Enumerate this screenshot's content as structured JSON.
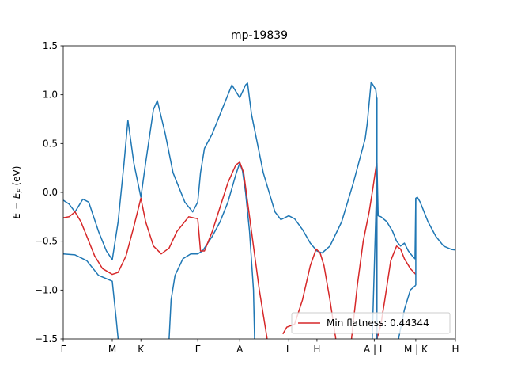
{
  "chart_data": {
    "type": "line",
    "title": "mp-19839",
    "xlabel": "",
    "ylabel": "E − E_F (eV)",
    "ylim": [
      -1.5,
      1.5
    ],
    "xlim": [
      0,
      100
    ],
    "y_ticks": [
      -1.5,
      -1.0,
      -0.5,
      0.0,
      0.5,
      1.0,
      1.5
    ],
    "y_tick_labels": [
      "−1.5",
      "−1.0",
      "−0.5",
      "0.0",
      "0.5",
      "1.0",
      "1.5"
    ],
    "high_symmetry_points": [
      {
        "label": "Γ",
        "x": 0
      },
      {
        "label": "M",
        "x": 12.5
      },
      {
        "label": "K",
        "x": 19.8
      },
      {
        "label": "Γ",
        "x": 34.3
      },
      {
        "label": "A",
        "x": 45.0
      },
      {
        "label": "L",
        "x": 57.5
      },
      {
        "label": "H",
        "x": 64.7
      },
      {
        "label": "A | L",
        "x": 79.3
      },
      {
        "label": "M | K",
        "x": 89.9
      },
      {
        "label": "H",
        "x": 100
      }
    ],
    "grid": false,
    "legend": {
      "entries": [
        "Min flatness: 0.44344"
      ],
      "placement": "lower right"
    },
    "colors": {
      "bands": "#1f77b4",
      "flat_band": "#d62728"
    },
    "series": [
      {
        "color": "#1f77b4",
        "points": [
          [
            0,
            -0.63
          ],
          [
            3,
            -0.64
          ],
          [
            6,
            -0.7
          ],
          [
            9,
            -0.85
          ],
          [
            12.5,
            -0.91
          ],
          [
            13.5,
            -1.3
          ],
          [
            14,
            -1.5
          ]
        ]
      },
      {
        "color": "#1f77b4",
        "points": [
          [
            0,
            -0.08
          ],
          [
            1.5,
            -0.12
          ],
          [
            3,
            -0.2
          ],
          [
            5,
            -0.07
          ],
          [
            6.5,
            -0.1
          ],
          [
            9,
            -0.4
          ],
          [
            11,
            -0.6
          ],
          [
            12.5,
            -0.69
          ],
          [
            14,
            -0.3
          ],
          [
            15.5,
            0.3
          ],
          [
            16.5,
            0.74
          ],
          [
            18,
            0.3
          ],
          [
            19.8,
            -0.05
          ],
          [
            21,
            0.3
          ],
          [
            23,
            0.85
          ],
          [
            24,
            0.94
          ],
          [
            26,
            0.6
          ],
          [
            28,
            0.2
          ],
          [
            31,
            -0.1
          ],
          [
            33,
            -0.2
          ],
          [
            34.3,
            -0.1
          ],
          [
            35,
            0.2
          ],
          [
            36,
            0.45
          ],
          [
            38,
            0.6
          ],
          [
            40,
            0.8
          ],
          [
            43,
            1.1
          ],
          [
            45,
            0.97
          ],
          [
            46.5,
            1.1
          ],
          [
            47,
            1.12
          ],
          [
            48,
            0.8
          ],
          [
            51,
            0.2
          ],
          [
            54,
            -0.2
          ],
          [
            55.5,
            -0.28
          ],
          [
            57.5,
            -0.24
          ],
          [
            59,
            -0.27
          ],
          [
            61,
            -0.38
          ],
          [
            63,
            -0.52
          ],
          [
            64.7,
            -0.6
          ],
          [
            66,
            -0.62
          ],
          [
            68,
            -0.55
          ],
          [
            71,
            -0.3
          ],
          [
            74,
            0.1
          ],
          [
            77,
            0.55
          ],
          [
            77.5,
            0.7
          ],
          [
            78.5,
            1.13
          ],
          [
            79,
            1.1
          ],
          [
            79.7,
            1.05
          ],
          [
            79.9,
            0.97
          ],
          [
            80,
            -1.5
          ]
        ]
      },
      {
        "color": "#1f77b4",
        "points": [
          [
            27,
            -1.5
          ],
          [
            27.5,
            -1.1
          ],
          [
            28.5,
            -0.85
          ],
          [
            30.5,
            -0.68
          ],
          [
            32.5,
            -0.63
          ],
          [
            34.3,
            -0.63
          ],
          [
            35.5,
            -0.6
          ],
          [
            38,
            -0.45
          ],
          [
            40,
            -0.3
          ],
          [
            42,
            -0.1
          ],
          [
            44,
            0.18
          ],
          [
            45,
            0.3
          ],
          [
            45.7,
            0.22
          ],
          [
            46.5,
            0
          ],
          [
            47.5,
            -0.4
          ],
          [
            48.5,
            -1.0
          ],
          [
            48.8,
            -1.5
          ]
        ]
      },
      {
        "color": "#1f77b4",
        "points": [
          [
            78.8,
            -1.5
          ],
          [
            79.3,
            -0.8
          ],
          [
            79.8,
            -0.1
          ],
          [
            80,
            0.3
          ],
          [
            80.3,
            -0.24
          ],
          [
            81,
            -0.25
          ],
          [
            82.5,
            -0.3
          ],
          [
            84,
            -0.4
          ],
          [
            85,
            -0.5
          ],
          [
            86,
            -0.55
          ],
          [
            87,
            -0.52
          ],
          [
            88,
            -0.6
          ],
          [
            89,
            -0.65
          ],
          [
            89.7,
            -0.68
          ],
          [
            89.9,
            -0.06
          ],
          [
            90.3,
            -0.05
          ],
          [
            91,
            -0.1
          ],
          [
            93,
            -0.3
          ],
          [
            95,
            -0.45
          ],
          [
            97,
            -0.55
          ],
          [
            99,
            -0.585
          ],
          [
            100,
            -0.59
          ]
        ]
      },
      {
        "color": "#1f77b4",
        "points": [
          [
            85.5,
            -1.5
          ],
          [
            87,
            -1.2
          ],
          [
            88.5,
            -1.0
          ],
          [
            89.9,
            -0.95
          ]
        ]
      },
      {
        "color": "#d62728",
        "points": [
          [
            0,
            -0.26
          ],
          [
            1.5,
            -0.25
          ],
          [
            3,
            -0.2
          ],
          [
            4.5,
            -0.3
          ],
          [
            6,
            -0.45
          ],
          [
            8,
            -0.65
          ],
          [
            10,
            -0.78
          ],
          [
            12.5,
            -0.84
          ],
          [
            14,
            -0.82
          ],
          [
            16,
            -0.65
          ],
          [
            18,
            -0.35
          ],
          [
            19.8,
            -0.06
          ],
          [
            21,
            -0.3
          ],
          [
            23,
            -0.55
          ],
          [
            25,
            -0.63
          ],
          [
            27,
            -0.57
          ],
          [
            29,
            -0.4
          ],
          [
            32,
            -0.25
          ],
          [
            34.3,
            -0.27
          ],
          [
            35,
            -0.6
          ],
          [
            36,
            -0.6
          ],
          [
            38,
            -0.4
          ],
          [
            40,
            -0.15
          ],
          [
            42,
            0.1
          ],
          [
            44,
            0.28
          ],
          [
            45,
            0.31
          ],
          [
            46,
            0.2
          ],
          [
            48,
            -0.4
          ],
          [
            50,
            -1.0
          ],
          [
            52,
            -1.5
          ]
        ]
      },
      {
        "color": "#d62728",
        "points": [
          [
            56,
            -1.45
          ],
          [
            57,
            -1.38
          ],
          [
            59,
            -1.35
          ],
          [
            61,
            -1.1
          ],
          [
            63,
            -0.75
          ],
          [
            64.5,
            -0.58
          ],
          [
            65.5,
            -0.62
          ],
          [
            66.5,
            -0.75
          ],
          [
            68,
            -1.1
          ],
          [
            69.5,
            -1.5
          ]
        ]
      },
      {
        "color": "#d62728",
        "points": [
          [
            73.5,
            -1.5
          ],
          [
            75,
            -0.95
          ],
          [
            76.5,
            -0.5
          ],
          [
            78,
            -0.2
          ],
          [
            79,
            0.05
          ],
          [
            79.9,
            0.3
          ],
          [
            80,
            -1.5
          ]
        ]
      },
      {
        "color": "#d62728",
        "points": [
          [
            80,
            -1.5
          ],
          [
            81,
            -1.35
          ],
          [
            82,
            -1.1
          ],
          [
            83.5,
            -0.7
          ],
          [
            85,
            -0.55
          ],
          [
            86,
            -0.58
          ],
          [
            87,
            -0.68
          ],
          [
            88.5,
            -0.78
          ],
          [
            89.9,
            -0.84
          ]
        ]
      },
      {
        "color": "#1f77b4",
        "points": [
          [
            80,
            -1.5
          ],
          [
            80,
            0.97
          ]
        ]
      },
      {
        "color": "#1f77b4",
        "points": [
          [
            89.9,
            -0.95
          ],
          [
            89.9,
            -0.06
          ]
        ]
      }
    ]
  }
}
